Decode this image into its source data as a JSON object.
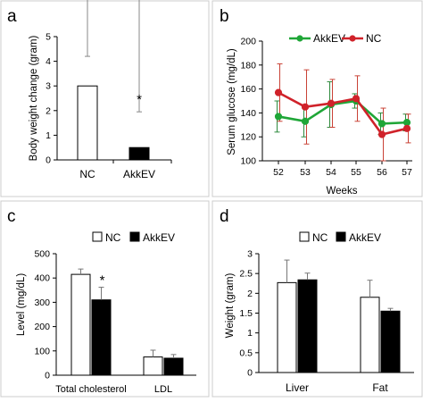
{
  "colors": {
    "axis": "#000000",
    "frame": "#cccccc",
    "akkev_line": "#1fa637",
    "nc_line": "#d0222a",
    "error_green": "#2d8a3d",
    "error_red": "#c94236",
    "bar_nc": "#ffffff",
    "bar_akkev": "#000000"
  },
  "chart_data": [
    {
      "panel": "a",
      "type": "bar",
      "ylabel": "Body weight change (gram)",
      "ylim": [
        0,
        5
      ],
      "yticks": [
        "0",
        "1",
        "2",
        "3",
        "4",
        "5"
      ],
      "categories": [
        "NC",
        "AkkEV"
      ],
      "values": [
        3.0,
        0.5
      ],
      "errors": [
        1.2,
        1.45
      ],
      "bar_colors": [
        "#ffffff",
        "#000000"
      ],
      "annotations": [
        {
          "text": "*",
          "category": "AkkEV"
        }
      ]
    },
    {
      "panel": "b",
      "type": "line",
      "xlabel": "Weeks",
      "ylabel": "Serum glucose (mg/dL)",
      "ylim": [
        100,
        200
      ],
      "yticks": [
        "100",
        "120",
        "140",
        "160",
        "180",
        "200"
      ],
      "x": [
        52,
        53,
        54,
        55,
        56,
        57
      ],
      "xticks": [
        "52",
        "53",
        "54",
        "55",
        "56",
        "57"
      ],
      "legend_position": "top",
      "series": [
        {
          "name": "AkkEV",
          "color": "#1fa637",
          "values": [
            137,
            133,
            147,
            150,
            131,
            132
          ],
          "errors": [
            13,
            13,
            19,
            6,
            9,
            7
          ]
        },
        {
          "name": "NC",
          "color": "#d0222a",
          "values": [
            157,
            145,
            148,
            152,
            122,
            127
          ],
          "errors": [
            24,
            31,
            20,
            19,
            22,
            12
          ]
        }
      ]
    },
    {
      "panel": "c",
      "type": "bar",
      "ylabel": "Level (mg/dL)",
      "ylim": [
        0,
        500
      ],
      "yticks": [
        "0",
        "100",
        "200",
        "300",
        "400",
        "500"
      ],
      "categories": [
        "Total cholesterol",
        "LDL"
      ],
      "legend_position": "top",
      "series": [
        {
          "name": "NC",
          "color": "#ffffff",
          "values": [
            415,
            75
          ],
          "errors": [
            22,
            28
          ]
        },
        {
          "name": "AkkEV",
          "color": "#000000",
          "values": [
            310,
            70
          ],
          "errors": [
            52,
            15
          ]
        }
      ],
      "annotations": [
        {
          "text": "*",
          "category": "Total cholesterol",
          "series": "AkkEV"
        }
      ]
    },
    {
      "panel": "d",
      "type": "bar",
      "ylabel": "Weight (gram)",
      "ylim": [
        0,
        3
      ],
      "yticks": [
        "0",
        "0.5",
        "1",
        "1.5",
        "2",
        "2.5",
        "3"
      ],
      "categories": [
        "Liver",
        "Fat"
      ],
      "legend_position": "top",
      "series": [
        {
          "name": "NC",
          "color": "#ffffff",
          "values": [
            2.27,
            1.9
          ],
          "errors": [
            0.57,
            0.43
          ]
        },
        {
          "name": "AkkEV",
          "color": "#000000",
          "values": [
            2.34,
            1.55
          ],
          "errors": [
            0.17,
            0.07
          ]
        }
      ]
    }
  ]
}
